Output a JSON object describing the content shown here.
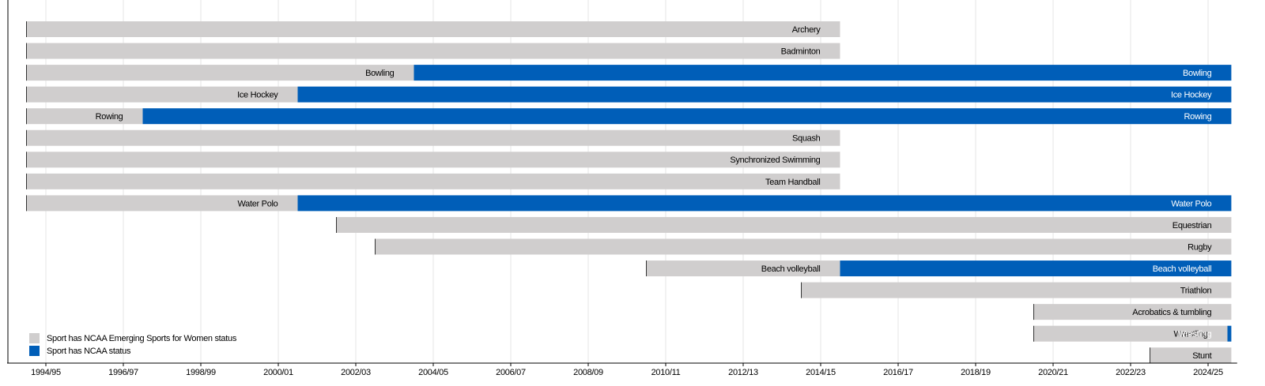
{
  "chart_data": {
    "type": "timeline",
    "categories": [
      "Archery",
      "Badminton",
      "Bowling",
      "Ice Hockey",
      "Rowing",
      "Squash",
      "Synchronized Swimming",
      "Team Handball",
      "Water Polo",
      "Equestrian",
      "Rugby",
      "Beach volleyball",
      "Triathlon",
      "Acrobatics & tumbling",
      "Wrestling",
      "Stunt"
    ],
    "series": [
      {
        "name": "Sport has NCAA Emerging Sports for Women status",
        "color": "#d0cece",
        "label_color": "#000000",
        "start": [
          1993.5,
          1993.5,
          1993.5,
          1993.5,
          1993.5,
          1993.5,
          1993.5,
          1993.5,
          1993.5,
          2001.5,
          2002.5,
          2009.5,
          2013.5,
          2019.5,
          2019.5,
          2022.5
        ],
        "end": [
          2014.5,
          2014.5,
          2003.5,
          2000.5,
          1996.5,
          2014.5,
          2014.5,
          2014.5,
          2000.5,
          2024.6,
          2024.6,
          2014.5,
          2024.6,
          2024.6,
          2024.5,
          2024.6
        ]
      },
      {
        "name": "Sport has NCAA status",
        "color": "#005eb8",
        "label_color": "#ffffff",
        "start": [
          null,
          null,
          2003.5,
          2000.5,
          1996.5,
          null,
          null,
          null,
          2000.5,
          null,
          null,
          2014.5,
          null,
          null,
          2024.5,
          null
        ],
        "end": [
          null,
          null,
          2024.6,
          2024.6,
          2024.6,
          null,
          null,
          null,
          2024.6,
          null,
          null,
          2024.6,
          null,
          null,
          2024.6,
          null
        ]
      }
    ],
    "xlim": [
      1993,
      2024.75
    ],
    "xticks": [
      {
        "value": 1994,
        "label": "1994/95"
      },
      {
        "value": 1996,
        "label": "1996/97"
      },
      {
        "value": 1998,
        "label": "1998/99"
      },
      {
        "value": 2000,
        "label": "2000/01"
      },
      {
        "value": 2002,
        "label": "2002/03"
      },
      {
        "value": 2004,
        "label": "2004/05"
      },
      {
        "value": 2006,
        "label": "2006/07"
      },
      {
        "value": 2008,
        "label": "2008/09"
      },
      {
        "value": 2010,
        "label": "2010/11"
      },
      {
        "value": 2012,
        "label": "2012/13"
      },
      {
        "value": 2014,
        "label": "2014/15"
      },
      {
        "value": 2016,
        "label": "2016/17"
      },
      {
        "value": 2018,
        "label": "2018/19"
      },
      {
        "value": 2020,
        "label": "2020/21"
      },
      {
        "value": 2022,
        "label": "2022/23"
      },
      {
        "value": 2024,
        "label": "2024/25"
      }
    ],
    "grid": true,
    "legend": "lower left"
  }
}
